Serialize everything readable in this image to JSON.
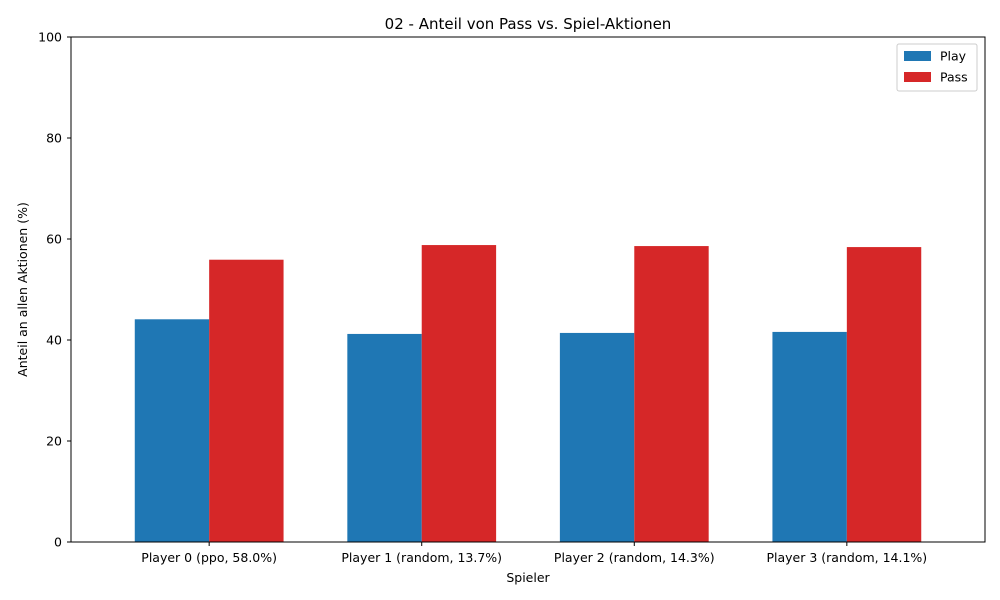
{
  "chart_data": {
    "type": "bar",
    "title": "02 - Anteil von Pass vs. Spiel-Aktionen",
    "xlabel": "Spieler",
    "ylabel": "Anteil an allen Aktionen (%)",
    "ylim": [
      0,
      100
    ],
    "yticks": [
      0,
      20,
      40,
      60,
      80,
      100
    ],
    "categories": [
      "Player 0 (ppo, 58.0%)",
      "Player 1 (random, 13.7%)",
      "Player 2 (random, 14.3%)",
      "Player 3 (random, 14.1%)"
    ],
    "series": [
      {
        "name": "Play",
        "color": "#1f77b4",
        "values": [
          44.1,
          41.2,
          41.4,
          41.6
        ]
      },
      {
        "name": "Pass",
        "color": "#d62728",
        "values": [
          55.9,
          58.8,
          58.6,
          58.4
        ]
      }
    ],
    "legend": "top-right",
    "grid": false
  }
}
